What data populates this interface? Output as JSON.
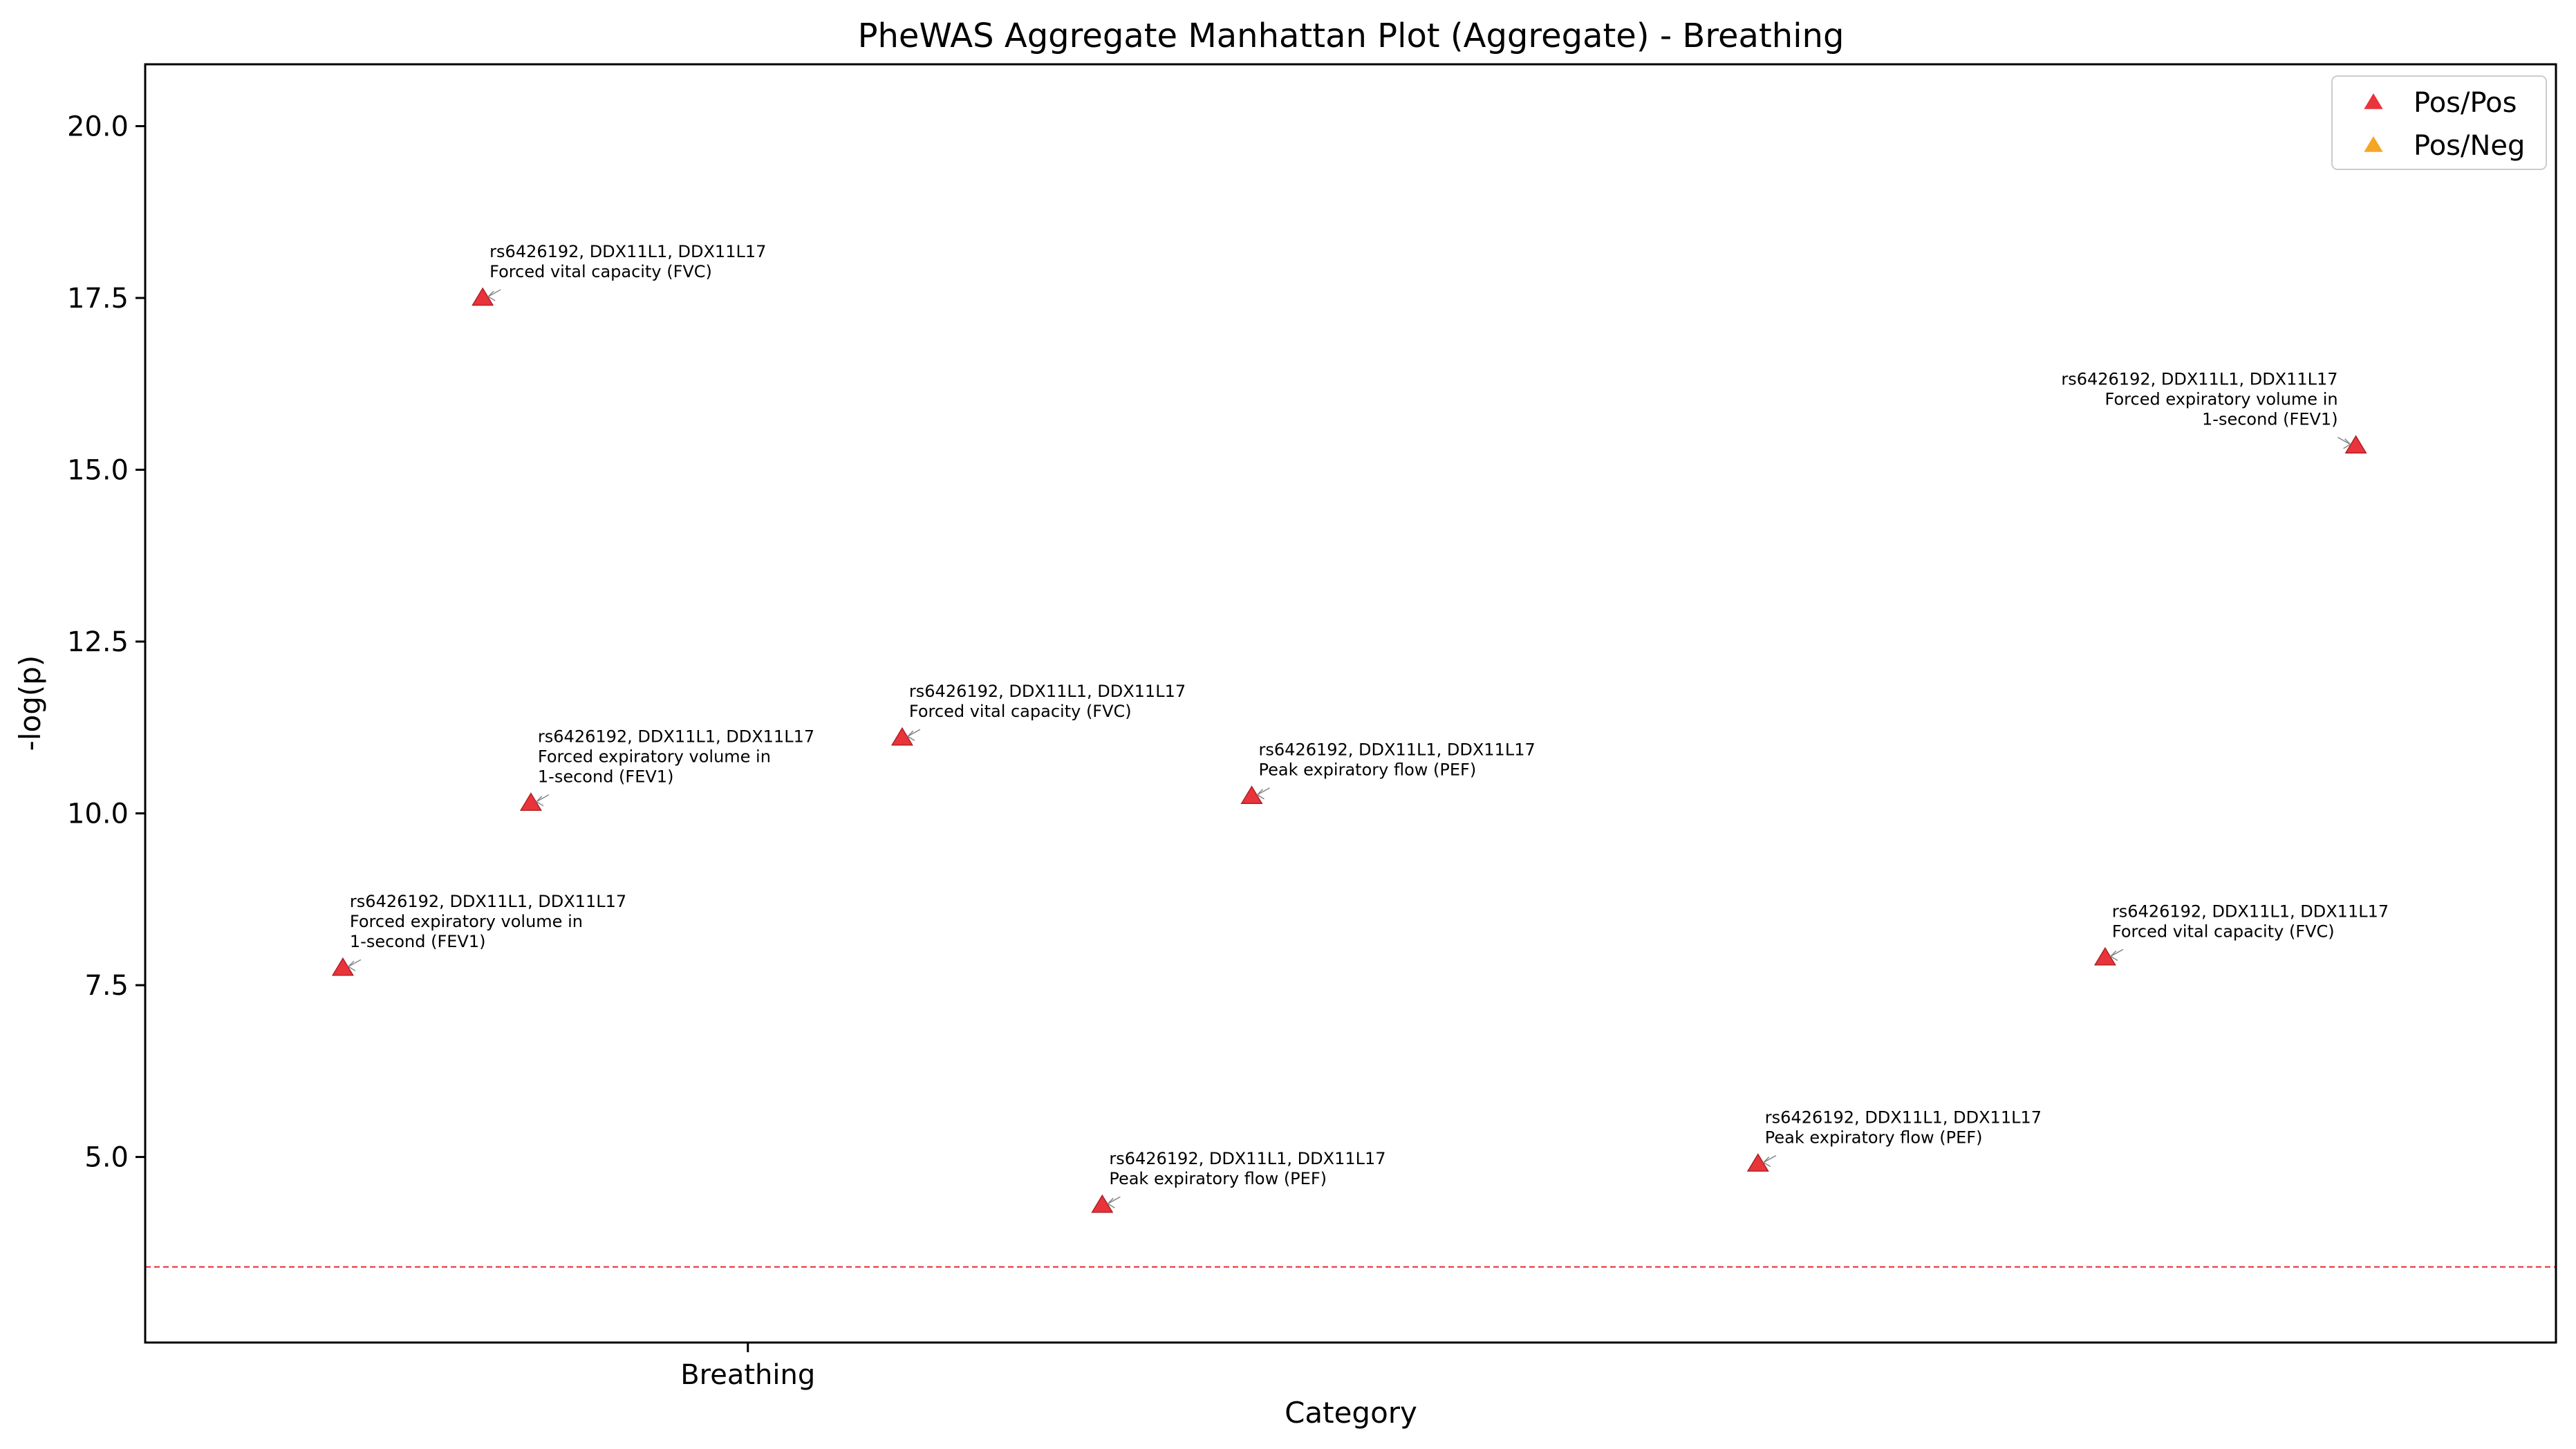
{
  "chart_data": {
    "type": "scatter",
    "title": "PheWAS Aggregate Manhattan Plot (Aggregate) - Breathing",
    "xlabel": "Category",
    "ylabel": "-log(p)",
    "x_tick_labels": [
      "Breathing"
    ],
    "x_tick_position": 0.25,
    "y_ticks": [
      5.0,
      7.5,
      10.0,
      12.5,
      15.0,
      17.5,
      20.0
    ],
    "y_tick_labels": [
      "5.0",
      "7.5",
      "10.0",
      "12.5",
      "15.0",
      "17.5",
      "20.0"
    ],
    "ylim": [
      2.3,
      20.9
    ],
    "xlim": [
      0,
      1
    ],
    "grid": false,
    "legend_position": "top-right",
    "threshold": {
      "y": 3.4,
      "color": "#e8262b",
      "style": "dashed"
    },
    "legend": [
      {
        "name": "Pos/Pos",
        "color": "#e8343a"
      },
      {
        "name": "Pos/Neg",
        "color": "#f5a623"
      }
    ],
    "points": [
      {
        "x": 0.082,
        "y": 7.75,
        "group": "Pos/Pos",
        "label": [
          "rs6426192, DDX11L1, DDX11L17",
          "Forced expiratory volume in",
          "1-second (FEV1)"
        ],
        "align": "right"
      },
      {
        "x": 0.14,
        "y": 17.5,
        "group": "Pos/Pos",
        "label": [
          "rs6426192, DDX11L1, DDX11L17",
          "Forced vital capacity (FVC)"
        ],
        "align": "right"
      },
      {
        "x": 0.16,
        "y": 10.15,
        "group": "Pos/Pos",
        "label": [
          "rs6426192, DDX11L1, DDX11L17",
          "Forced expiratory volume in",
          "1-second (FEV1)"
        ],
        "align": "right"
      },
      {
        "x": 0.314,
        "y": 11.1,
        "group": "Pos/Pos",
        "label": [
          "rs6426192, DDX11L1, DDX11L17",
          "Forced vital capacity (FVC)"
        ],
        "align": "right"
      },
      {
        "x": 0.397,
        "y": 4.3,
        "group": "Pos/Pos",
        "label": [
          "rs6426192, DDX11L1, DDX11L17",
          "Peak expiratory flow (PEF)"
        ],
        "align": "right"
      },
      {
        "x": 0.459,
        "y": 10.25,
        "group": "Pos/Pos",
        "label": [
          "rs6426192, DDX11L1, DDX11L17",
          "Peak expiratory flow (PEF)"
        ],
        "align": "right"
      },
      {
        "x": 0.669,
        "y": 4.9,
        "group": "Pos/Pos",
        "label": [
          "rs6426192, DDX11L1, DDX11L17",
          "Peak expiratory flow (PEF)"
        ],
        "align": "right"
      },
      {
        "x": 0.813,
        "y": 7.9,
        "group": "Pos/Pos",
        "label": [
          "rs6426192, DDX11L1, DDX11L17",
          "Forced vital capacity (FVC)"
        ],
        "align": "right"
      },
      {
        "x": 0.917,
        "y": 15.35,
        "group": "Pos/Pos",
        "label": [
          "rs6426192, DDX11L1, DDX11L17",
          "Forced expiratory volume in",
          "1-second (FEV1)"
        ],
        "align": "left"
      }
    ]
  }
}
